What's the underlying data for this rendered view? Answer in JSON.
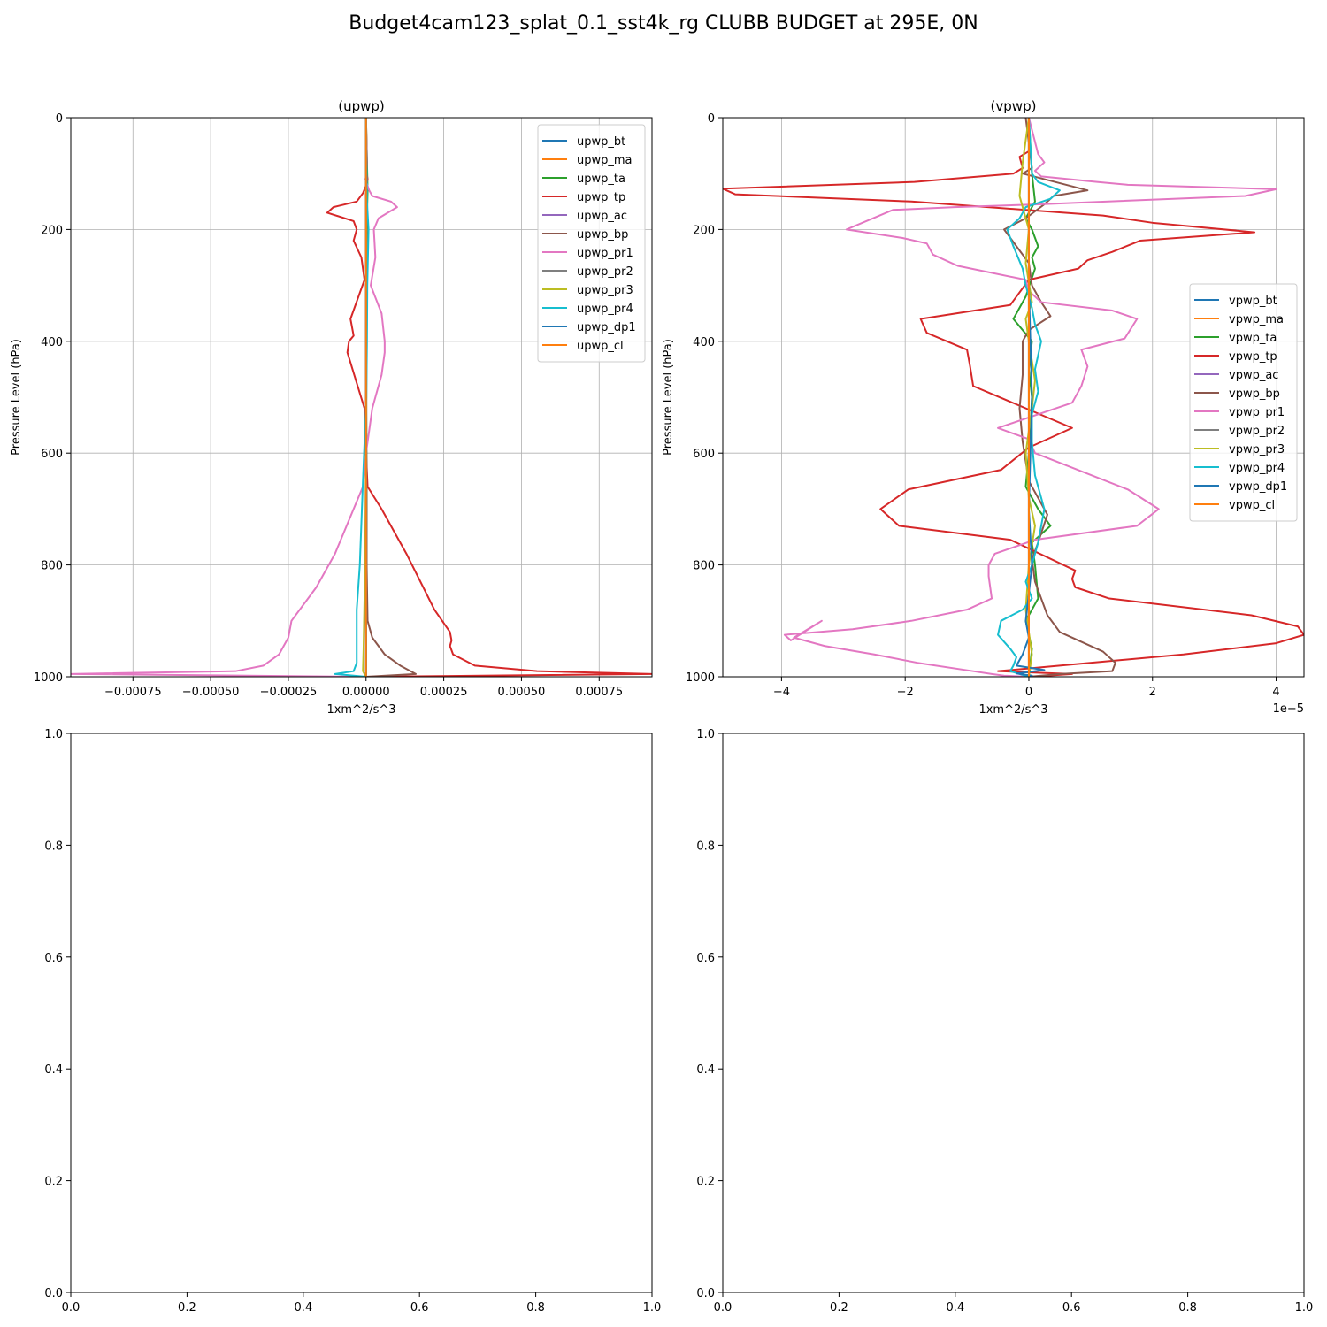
{
  "suptitle": "Budget4cam123_splat_0.1_sst4k_rg CLUBB BUDGET at 295E, 0N",
  "colors": {
    "bt": "#1f77b4",
    "ma": "#ff7f0e",
    "ta": "#2ca02c",
    "tp": "#d62728",
    "ac": "#9467bd",
    "bp": "#8c564b",
    "pr1": "#e377c2",
    "pr2": "#7f7f7f",
    "pr3": "#bcbd22",
    "pr4": "#17becf",
    "dp1": "#1f77b4",
    "cl": "#ff7f0e",
    "grid": "#b0b0b0"
  },
  "chart_data": [
    {
      "type": "line",
      "title": "(upwp)",
      "xlabel": "1xm^2/s^3",
      "ylabel": "Pressure Level (hPa)",
      "xlim": [
        -0.00095,
        0.00092
      ],
      "ylim": [
        1000,
        0
      ],
      "y_inverted": true,
      "grid": true,
      "legend_position": "upper right",
      "xticks": [
        -0.00075,
        -0.0005,
        -0.00025,
        0.0,
        0.00025,
        0.0005,
        0.00075
      ],
      "xtick_labels": [
        "−0.00075",
        "−0.00050",
        "−0.00025",
        "0.00000",
        "0.00025",
        "0.00050",
        "0.00075"
      ],
      "yticks": [
        0,
        200,
        400,
        600,
        800,
        1000
      ],
      "ytick_labels": [
        "0",
        "200",
        "400",
        "600",
        "800",
        "1000"
      ],
      "series": [
        {
          "name": "upwp_bt",
          "color_key": "bt",
          "x": [
            0,
            0,
            0
          ],
          "y": [
            0,
            500,
            1000
          ]
        },
        {
          "name": "upwp_ma",
          "color_key": "ma",
          "x": [
            0,
            0,
            0
          ],
          "y": [
            0,
            500,
            1000
          ]
        },
        {
          "name": "upwp_ta",
          "color_key": "ta",
          "x": [
            0,
            5e-06,
            2e-06,
            0,
            2e-06,
            0
          ],
          "y": [
            0,
            130,
            200,
            400,
            700,
            1000
          ]
        },
        {
          "name": "upwp_tp",
          "color_key": "tp",
          "x": [
            0,
            3e-06,
            2e-06,
            5e-06,
            1e-06,
            -1e-05,
            -3e-05,
            -0.000105,
            -0.000125,
            -4e-05,
            -3e-05,
            -4e-05,
            -1.5e-05,
            -5e-06,
            -5e-05,
            -4e-05,
            -5.5e-05,
            -6e-05,
            -5e-06,
            0.0,
            0.0,
            5e-06,
            5e-05,
            0.00013,
            0.00022,
            0.00027,
            0.000275,
            0.00027,
            0.00028,
            0.00035,
            0.00055,
            0.00092,
            0.0
          ],
          "y": [
            0,
            80,
            100,
            110,
            120,
            135,
            150,
            160,
            170,
            185,
            200,
            220,
            250,
            290,
            360,
            390,
            400,
            420,
            520,
            570,
            600,
            660,
            700,
            780,
            880,
            920,
            935,
            945,
            960,
            980,
            990,
            995,
            1000
          ]
        },
        {
          "name": "upwp_ac",
          "color_key": "ac",
          "x": [
            0,
            0,
            0
          ],
          "y": [
            0,
            500,
            1000
          ]
        },
        {
          "name": "upwp_bp",
          "color_key": "bp",
          "x": [
            0,
            1e-06,
            1e-06,
            2e-06,
            5e-06,
            2e-05,
            6e-05,
            0.00011,
            0.00016,
            0.0
          ],
          "y": [
            0,
            200,
            500,
            800,
            900,
            930,
            960,
            980,
            995,
            1000
          ]
        },
        {
          "name": "upwp_pr1",
          "color_key": "pr1",
          "x": [
            0,
            2e-06,
            -2e-06,
            1e-05,
            2e-05,
            8e-05,
            0.0001,
            4e-05,
            2.5e-05,
            3e-05,
            1.5e-05,
            5e-05,
            6e-05,
            6e-05,
            5e-05,
            2e-05,
            0.0,
            -1e-05,
            -4e-05,
            -0.0001,
            -0.00016,
            -0.00024,
            -0.00025,
            -0.00028,
            -0.00033,
            -0.00042,
            -0.00095,
            0.0
          ],
          "y": [
            0,
            100,
            110,
            130,
            140,
            150,
            160,
            180,
            200,
            250,
            300,
            350,
            400,
            420,
            460,
            520,
            600,
            660,
            700,
            780,
            840,
            900,
            930,
            960,
            980,
            990,
            995,
            1000
          ]
        },
        {
          "name": "upwp_pr2",
          "color_key": "pr2",
          "x": [
            0,
            0,
            0
          ],
          "y": [
            0,
            500,
            1000
          ]
        },
        {
          "name": "upwp_pr3",
          "color_key": "pr3",
          "x": [
            0,
            1e-06,
            -3e-06,
            -8e-06,
            -1e-05,
            0
          ],
          "y": [
            0,
            500,
            800,
            950,
            990,
            1000
          ]
        },
        {
          "name": "upwp_pr4",
          "color_key": "pr4",
          "x": [
            0,
            3e-06,
            8e-06,
            4e-06,
            3e-06,
            1e-06,
            -1e-05,
            -2e-05,
            -3e-05,
            -3e-05,
            -3e-05,
            -4e-05,
            -0.0001,
            0.0
          ],
          "y": [
            0,
            150,
            200,
            300,
            400,
            500,
            650,
            800,
            880,
            940,
            975,
            990,
            995,
            1000
          ]
        },
        {
          "name": "upwp_dp1",
          "color_key": "dp1",
          "x": [
            0,
            0,
            0
          ],
          "y": [
            0,
            500,
            1000
          ]
        },
        {
          "name": "upwp_cl",
          "color_key": "cl",
          "x": [
            0,
            0,
            0
          ],
          "y": [
            0,
            500,
            1000
          ]
        }
      ]
    },
    {
      "type": "line",
      "title": "(vpwp)",
      "xlabel": "1xm^2/s^3",
      "ylabel": "Pressure Level (hPa)",
      "x_offset_label": "1e−5",
      "xlim": [
        -4.95,
        4.45
      ],
      "ylim": [
        1000,
        0
      ],
      "y_inverted": true,
      "grid": true,
      "legend_position": "center right",
      "xticks": [
        -4,
        -2,
        0,
        2,
        4
      ],
      "xtick_labels": [
        "−4",
        "−2",
        "0",
        "2",
        "4"
      ],
      "yticks": [
        0,
        200,
        400,
        600,
        800,
        1000
      ],
      "ytick_labels": [
        "0",
        "200",
        "400",
        "600",
        "800",
        "1000"
      ],
      "series": [
        {
          "name": "vpwp_bt",
          "color_key": "bt",
          "x": [
            0,
            0,
            0
          ],
          "y": [
            0,
            500,
            1000
          ]
        },
        {
          "name": "vpwp_ma",
          "color_key": "ma",
          "x": [
            0,
            0,
            0
          ],
          "y": [
            0,
            500,
            1000
          ]
        },
        {
          "name": "vpwp_ta",
          "color_key": "ta",
          "x": [
            0,
            0.05,
            0.1,
            -0.05,
            0.05,
            0.15,
            0.05,
            0.1,
            -0.05,
            -0.25,
            0.05,
            0.0,
            0.05,
            0.0,
            -0.05,
            0.15,
            0.35,
            0.05,
            0.1,
            0.15,
            -0.05,
            0.05,
            0.0
          ],
          "y": [
            0,
            100,
            150,
            180,
            200,
            230,
            250,
            270,
            320,
            360,
            400,
            450,
            500,
            600,
            660,
            700,
            730,
            760,
            800,
            860,
            900,
            950,
            1000
          ]
        },
        {
          "name": "vpwp_tp",
          "color_key": "tp",
          "x": [
            0,
            0.0,
            -0.15,
            -0.1,
            -0.25,
            -1.85,
            -4.95,
            -4.75,
            -1.9,
            1.2,
            2.0,
            3.65,
            1.8,
            1.35,
            0.95,
            0.8,
            0.0,
            -0.3,
            -1.75,
            -1.65,
            -1.0,
            -0.95,
            -0.9,
            0.7,
            0.0,
            -0.45,
            -1.95,
            -2.4,
            -2.1,
            -0.3,
            0.75,
            0.7,
            0.75,
            1.3,
            3.6,
            4.35,
            4.45,
            4.0,
            2.5,
            0.5,
            -0.5,
            0.7,
            0.3,
            0.0
          ],
          "y": [
            0,
            60,
            70,
            90,
            100,
            115,
            127,
            137,
            150,
            175,
            188,
            205,
            220,
            240,
            255,
            270,
            290,
            335,
            360,
            385,
            415,
            445,
            480,
            555,
            590,
            630,
            665,
            700,
            730,
            755,
            810,
            825,
            840,
            860,
            890,
            910,
            925,
            940,
            960,
            980,
            990,
            995,
            998,
            1000
          ]
        },
        {
          "name": "vpwp_ac",
          "color_key": "ac",
          "x": [
            0,
            0,
            0
          ],
          "y": [
            0,
            500,
            1000
          ]
        },
        {
          "name": "vpwp_bp",
          "color_key": "bp",
          "x": [
            -0.05,
            0.05,
            -0.1,
            0.6,
            0.95,
            0.4,
            0.25,
            -0.05,
            -0.4,
            -0.2,
            0.0,
            0.05,
            0.2,
            0.35,
            0.0,
            -0.1,
            -0.1,
            -0.15,
            -0.1,
            0.0,
            0.3,
            0.15,
            0.05,
            0.1,
            0.3,
            0.5,
            1.2,
            1.4,
            1.35,
            0.5,
            0.0
          ],
          "y": [
            0,
            90,
            100,
            120,
            130,
            140,
            155,
            180,
            200,
            230,
            260,
            300,
            330,
            355,
            380,
            400,
            460,
            520,
            580,
            650,
            710,
            760,
            790,
            830,
            890,
            920,
            955,
            975,
            990,
            995,
            1000
          ]
        },
        {
          "name": "vpwp_pr1",
          "color_key": "pr1",
          "x": [
            0,
            0.15,
            0.25,
            0.1,
            0.2,
            1.1,
            1.6,
            4.0,
            3.5,
            0.15,
            -1.2,
            -2.2,
            -2.95,
            -2.05,
            -1.65,
            -1.55,
            -1.15,
            -0.05,
            0.0,
            0.2,
            1.35,
            1.75,
            1.55,
            0.85,
            0.95,
            0.85,
            0.7,
            -0.5,
            0.0,
            0.1,
            1.6,
            2.1,
            1.75,
            0.1,
            -0.55,
            -0.65,
            -0.65,
            -0.6,
            -1.0,
            -1.9,
            -2.85,
            -3.95,
            -3.85,
            -3.35,
            -3.8,
            -3.3,
            -2.5,
            -1.8,
            -0.9,
            -0.6,
            -0.4,
            0.0
          ],
          "y": [
            0,
            65,
            80,
            95,
            105,
            115,
            120,
            128,
            140,
            155,
            160,
            165,
            200,
            215,
            225,
            245,
            265,
            290,
            310,
            330,
            345,
            360,
            395,
            415,
            445,
            480,
            510,
            555,
            575,
            600,
            665,
            700,
            730,
            755,
            780,
            800,
            820,
            860,
            880,
            900,
            915,
            925,
            935,
            900,
            930,
            945,
            960,
            975,
            990,
            995,
            998,
            1000
          ]
        },
        {
          "name": "vpwp_pr2",
          "color_key": "pr2",
          "x": [
            0,
            0,
            0
          ],
          "y": [
            0,
            500,
            1000
          ]
        },
        {
          "name": "vpwp_pr3",
          "color_key": "pr3",
          "x": [
            0,
            -0.1,
            -0.15,
            0.0,
            -0.05,
            0.05,
            -0.05,
            0.0,
            0.1,
            0.05,
            -0.05,
            0.0,
            0.1,
            0.0,
            -0.05,
            0.05,
            0.0
          ],
          "y": [
            0,
            80,
            140,
            200,
            260,
            330,
            360,
            400,
            470,
            520,
            600,
            680,
            730,
            800,
            880,
            960,
            1000
          ]
        },
        {
          "name": "vpwp_pr4",
          "color_key": "pr4",
          "x": [
            0,
            0.05,
            0.15,
            0.5,
            0.35,
            -0.05,
            -0.15,
            -0.35,
            -0.25,
            -0.1,
            -0.05,
            0.05,
            0.1,
            0.2,
            0.1,
            0.15,
            0.05,
            0.05,
            0.1,
            0.25,
            0.15,
            0.05,
            -0.05,
            0.05,
            -0.1,
            -0.45,
            -0.5,
            -0.3,
            -0.2,
            -0.25,
            -0.3,
            0.0
          ],
          "y": [
            0,
            100,
            115,
            130,
            145,
            160,
            180,
            200,
            230,
            270,
            300,
            340,
            370,
            400,
            450,
            490,
            530,
            580,
            640,
            700,
            760,
            800,
            830,
            860,
            880,
            900,
            925,
            950,
            965,
            980,
            990,
            1000
          ]
        },
        {
          "name": "vpwp_dp1",
          "color_key": "dp1",
          "x": [
            0,
            0.0,
            0.05,
            0.0,
            0.05,
            -0.05,
            0.0,
            -0.1,
            -0.2,
            0.25,
            -0.2,
            0.05,
            0.0
          ],
          "y": [
            0,
            300,
            500,
            700,
            800,
            900,
            930,
            960,
            980,
            988,
            994,
            998,
            1000
          ]
        },
        {
          "name": "vpwp_cl",
          "color_key": "cl",
          "x": [
            0,
            0,
            0
          ],
          "y": [
            0,
            500,
            1000
          ]
        }
      ]
    },
    {
      "type": "line",
      "title": "",
      "xlim": [
        0,
        1
      ],
      "ylim": [
        0,
        1
      ],
      "grid": false,
      "xticks": [
        0,
        0.2,
        0.4,
        0.6,
        0.8,
        1
      ],
      "xtick_labels": [
        "0.0",
        "0.2",
        "0.4",
        "0.6",
        "0.8",
        "1.0"
      ],
      "yticks": [
        0,
        0.2,
        0.4,
        0.6,
        0.8,
        1
      ],
      "ytick_labels": [
        "0.0",
        "0.2",
        "0.4",
        "0.6",
        "0.8",
        "1.0"
      ],
      "series": []
    },
    {
      "type": "line",
      "title": "",
      "xlim": [
        0,
        1
      ],
      "ylim": [
        0,
        1
      ],
      "grid": false,
      "xticks": [
        0,
        0.2,
        0.4,
        0.6,
        0.8,
        1
      ],
      "xtick_labels": [
        "0.0",
        "0.2",
        "0.4",
        "0.6",
        "0.8",
        "1.0"
      ],
      "yticks": [
        0,
        0.2,
        0.4,
        0.6,
        0.8,
        1
      ],
      "ytick_labels": [
        "0.0",
        "0.2",
        "0.4",
        "0.6",
        "0.8",
        "1.0"
      ],
      "series": []
    }
  ]
}
